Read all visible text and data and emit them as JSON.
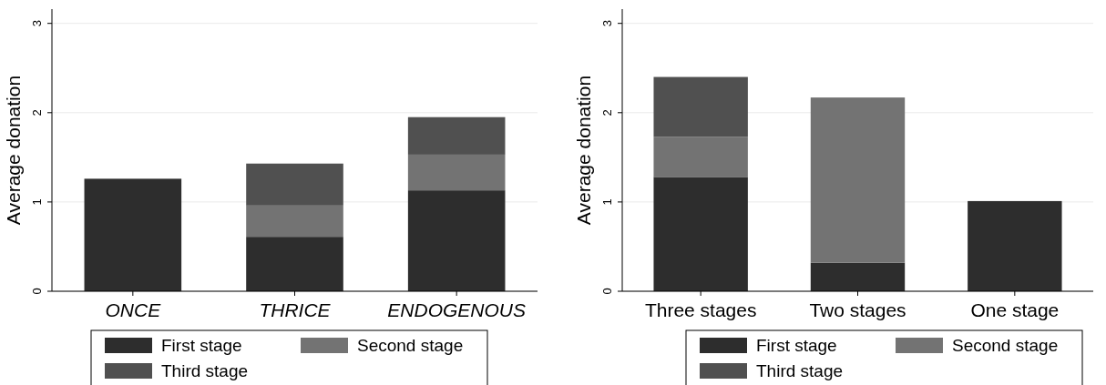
{
  "chart_data": [
    {
      "type": "bar",
      "stacked": true,
      "ylabel": "Average donation",
      "categories": [
        "ONCE",
        "THRICE",
        "ENDOGENOUS"
      ],
      "ylim": [
        0,
        3.16
      ],
      "yticks": [
        0,
        1,
        2,
        3
      ],
      "grid": "y",
      "legend": "bottom",
      "series": [
        {
          "name": "First stage",
          "color": "#2d2d2d",
          "values": [
            1.26,
            0.61,
            1.13
          ]
        },
        {
          "name": "Second stage",
          "color": "#737373",
          "values": [
            null,
            0.35,
            0.4
          ]
        },
        {
          "name": "Third stage",
          "color": "#505050",
          "values": [
            null,
            0.47,
            0.42
          ]
        }
      ]
    },
    {
      "type": "bar",
      "stacked": true,
      "ylabel": "Average donation",
      "categories": [
        "Three stages",
        "Two stages",
        "One stage"
      ],
      "ylim": [
        0,
        3.16
      ],
      "yticks": [
        0,
        1,
        2,
        3
      ],
      "grid": "y",
      "legend": "bottom",
      "series": [
        {
          "name": "First stage",
          "color": "#2d2d2d",
          "values": [
            1.28,
            0.32,
            1.01
          ]
        },
        {
          "name": "Second stage",
          "color": "#737373",
          "values": [
            0.45,
            1.85,
            null
          ]
        },
        {
          "name": "Third stage",
          "color": "#505050",
          "values": [
            0.67,
            null,
            null
          ]
        }
      ]
    }
  ]
}
